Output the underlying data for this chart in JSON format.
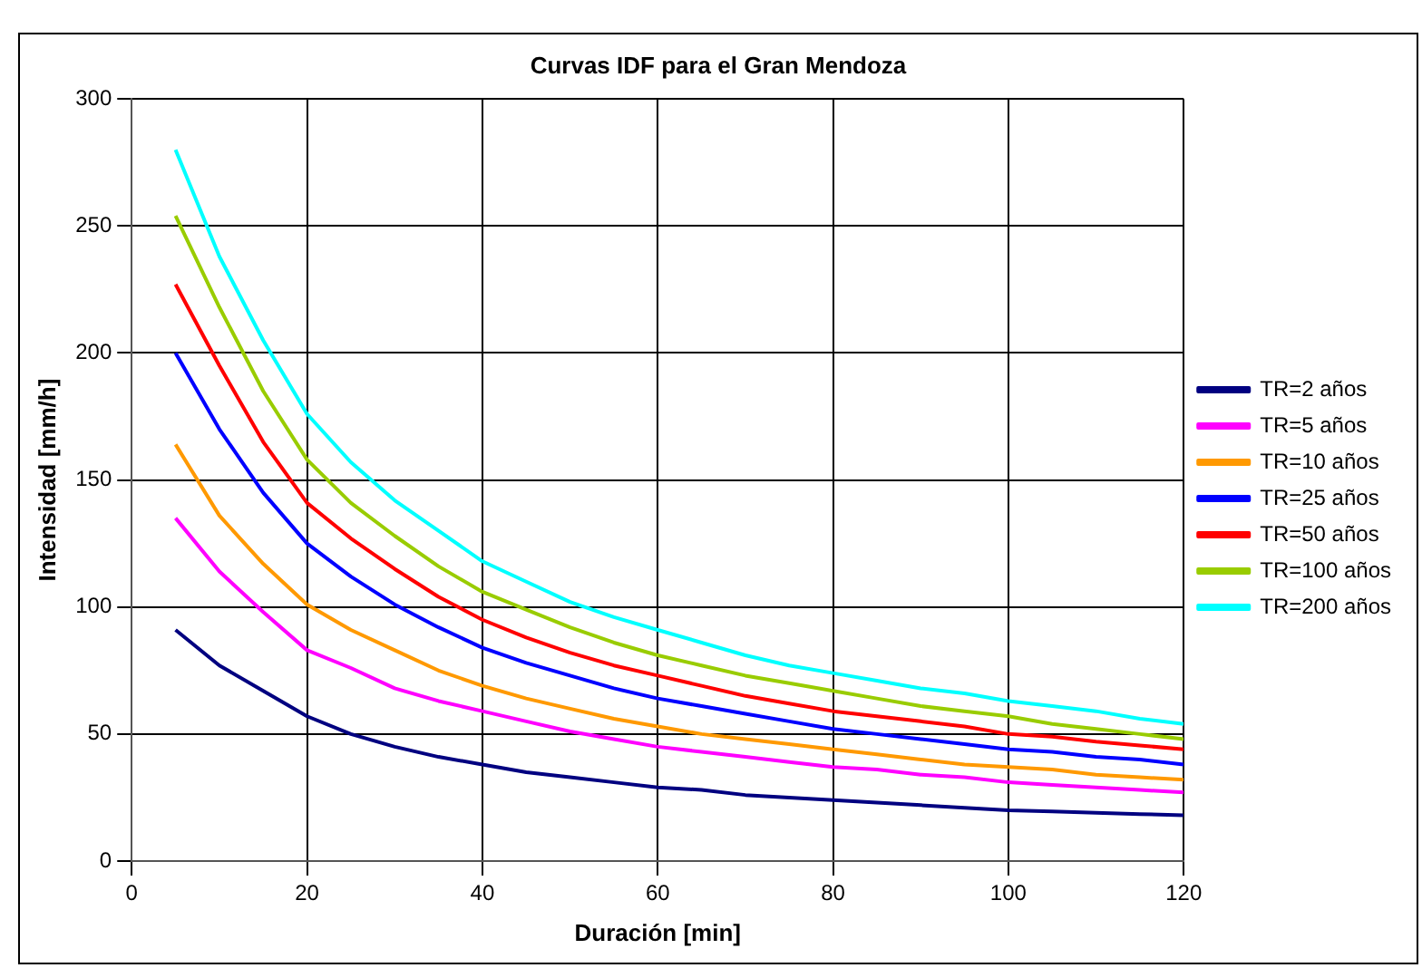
{
  "chart_data": {
    "type": "line",
    "title": "Curvas IDF para el Gran Mendoza",
    "xlabel": "Duración [min]",
    "ylabel": "Intensidad [mm/h]",
    "x": [
      5,
      10,
      15,
      20,
      25,
      30,
      35,
      40,
      45,
      50,
      55,
      60,
      65,
      70,
      75,
      80,
      85,
      90,
      95,
      100,
      105,
      110,
      115,
      120
    ],
    "xlim": [
      0,
      120
    ],
    "xticks": [
      0,
      20,
      40,
      60,
      80,
      100,
      120
    ],
    "ylim": [
      0,
      300
    ],
    "yticks": [
      0,
      50,
      100,
      150,
      200,
      250,
      300
    ],
    "grid": true,
    "legend": "right",
    "marker": "none",
    "line_style": "solid",
    "series": [
      {
        "name": "TR=2 años",
        "color": "#000080",
        "values": [
          91,
          77,
          67,
          57,
          50,
          45,
          41,
          38,
          35,
          33,
          31,
          29,
          28,
          26,
          25,
          24,
          23,
          22,
          21,
          20,
          19.5,
          19,
          18.5,
          18
        ]
      },
      {
        "name": "TR=5 años",
        "color": "#ff00ff",
        "values": [
          135,
          114,
          98,
          83,
          76,
          68,
          63,
          59,
          55,
          51,
          48,
          45,
          43,
          41,
          39,
          37,
          36,
          34,
          33,
          31,
          30,
          29,
          28,
          27
        ]
      },
      {
        "name": "TR=10 años",
        "color": "#ff9900",
        "values": [
          164,
          136,
          117,
          101,
          91,
          83,
          75,
          69,
          64,
          60,
          56,
          53,
          50,
          48,
          46,
          44,
          42,
          40,
          38,
          37,
          36,
          34,
          33,
          32
        ]
      },
      {
        "name": "TR=25 años",
        "color": "#0000ff",
        "values": [
          200,
          170,
          145,
          125,
          112,
          101,
          92,
          84,
          78,
          73,
          68,
          64,
          61,
          58,
          55,
          52,
          50,
          48,
          46,
          44,
          43,
          41,
          40,
          38
        ]
      },
      {
        "name": "TR=50 años",
        "color": "#ff0000",
        "values": [
          227,
          195,
          165,
          141,
          127,
          115,
          104,
          95,
          88,
          82,
          77,
          73,
          69,
          65,
          62,
          59,
          57,
          55,
          53,
          50,
          49,
          47,
          45.5,
          44
        ]
      },
      {
        "name": "TR=100 años",
        "color": "#99cc00",
        "values": [
          254,
          218,
          185,
          158,
          141,
          128,
          116,
          106,
          99,
          92,
          86,
          81,
          77,
          73,
          70,
          67,
          64,
          61,
          59,
          57,
          54,
          52,
          50,
          48
        ]
      },
      {
        "name": "TR=200 años",
        "color": "#00ffff",
        "values": [
          280,
          238,
          205,
          176,
          157,
          142,
          130,
          118,
          110,
          102,
          96,
          91,
          86,
          81,
          77,
          74,
          71,
          68,
          66,
          63,
          61,
          59,
          56,
          54
        ]
      }
    ]
  }
}
